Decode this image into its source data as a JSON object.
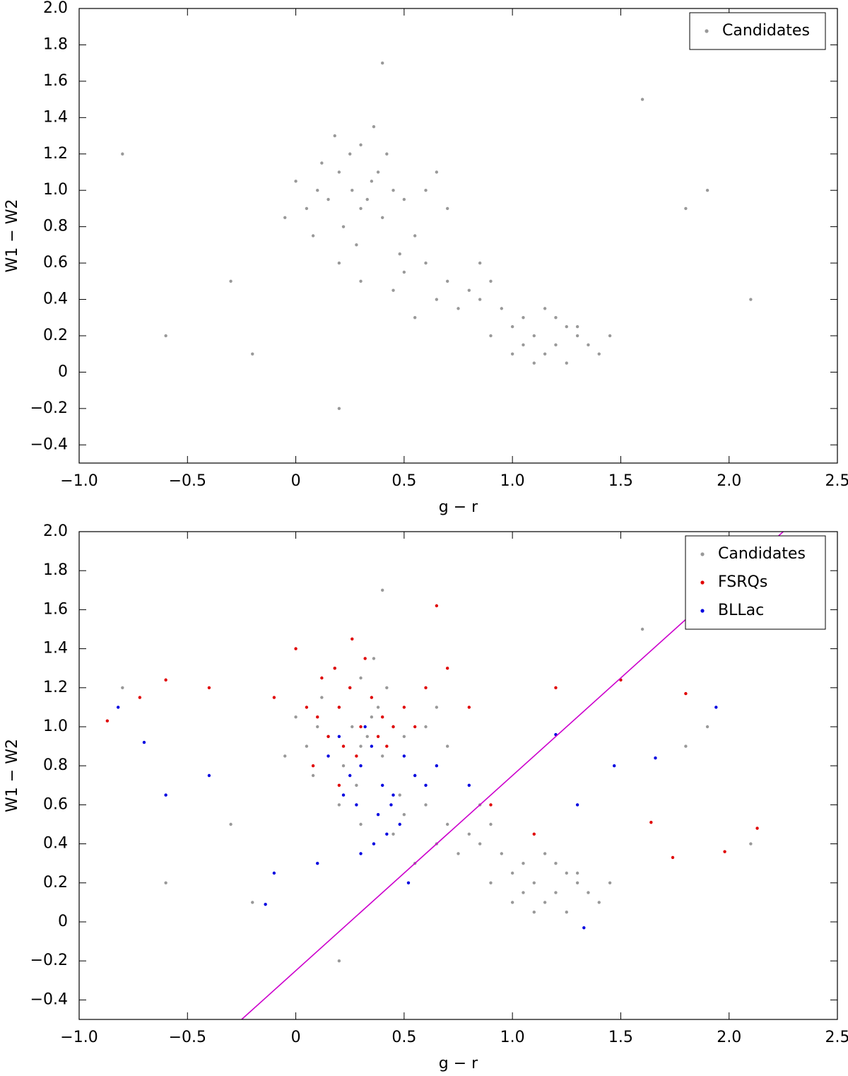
{
  "chart_data": [
    {
      "type": "scatter",
      "xlabel": "g − r",
      "ylabel": "W1 − W2",
      "xlim": [
        -1.0,
        2.5
      ],
      "ylim": [
        -0.5,
        2.0
      ],
      "xticks": [
        {
          "value": -1.0,
          "label": "−1.0"
        },
        {
          "value": -0.5,
          "label": "−0.5"
        },
        0,
        0.5,
        {
          "value": 1.0,
          "label": "1.0"
        },
        1.5,
        {
          "value": 2.0,
          "label": "2.0"
        },
        2.5
      ],
      "yticks": [
        {
          "value": -0.4,
          "label": "−0.4"
        },
        {
          "value": -0.2,
          "label": "−0.2"
        },
        0,
        0.2,
        0.4,
        0.6,
        0.8,
        {
          "value": 1.0,
          "label": "1.0"
        },
        1.2,
        1.4,
        1.6,
        1.8,
        {
          "value": 2.0,
          "label": "2.0"
        }
      ],
      "legend": "upper right",
      "series": [
        {
          "name": "Candidates",
          "color": "#000000",
          "alpha": 0.4,
          "x": [
            0.1,
            0.2,
            0.3,
            0.25,
            0.15,
            0.35,
            0.4,
            0.05,
            0.45,
            0.22,
            0.3,
            0.5,
            0.12,
            0.28,
            0.38,
            0.18,
            0.6,
            0.0,
            0.55,
            0.33,
            -0.05,
            0.42,
            0.26,
            0.48,
            0.7,
            0.2,
            0.36,
            0.08,
            0.65,
            0.3,
            1.0,
            1.1,
            1.2,
            1.3,
            1.15,
            1.05,
            0.95,
            1.25,
            1.35,
            1.4,
            1.1,
            0.9,
            1.2,
            1.0,
            1.3,
            0.85,
            1.45,
            1.15,
            1.05,
            1.25,
            0.6,
            0.7,
            0.8,
            0.5,
            0.75,
            0.65,
            0.55,
            0.9,
            0.45,
            0.85,
            -0.3,
            -0.6,
            1.8,
            2.1,
            -0.8,
            0.4,
            1.6,
            0.2,
            1.9,
            -0.2
          ],
          "y": [
            1.0,
            1.1,
            0.9,
            1.2,
            0.95,
            1.05,
            0.85,
            0.9,
            1.0,
            0.8,
            1.25,
            0.95,
            1.15,
            0.7,
            1.1,
            1.3,
            1.0,
            1.05,
            0.75,
            0.95,
            0.85,
            1.2,
            1.0,
            0.65,
            0.9,
            0.6,
            1.35,
            0.75,
            1.1,
            0.5,
            0.25,
            0.2,
            0.15,
            0.2,
            0.1,
            0.3,
            0.35,
            0.25,
            0.15,
            0.1,
            0.05,
            0.2,
            0.3,
            0.1,
            0.25,
            0.4,
            0.2,
            0.35,
            0.15,
            0.05,
            0.6,
            0.5,
            0.45,
            0.55,
            0.35,
            0.4,
            0.3,
            0.5,
            0.45,
            0.6,
            0.5,
            0.2,
            0.9,
            0.4,
            1.2,
            1.7,
            1.5,
            -0.2,
            1.0,
            0.1
          ]
        }
      ]
    },
    {
      "type": "scatter",
      "xlabel": "g − r",
      "ylabel": "W1 − W2",
      "xlim": [
        -1.0,
        2.5
      ],
      "ylim": [
        -0.5,
        2.0
      ],
      "xticks": [
        {
          "value": -1.0,
          "label": "−1.0"
        },
        {
          "value": -0.5,
          "label": "−0.5"
        },
        0,
        0.5,
        {
          "value": 1.0,
          "label": "1.0"
        },
        1.5,
        {
          "value": 2.0,
          "label": "2.0"
        },
        2.5
      ],
      "yticks": [
        {
          "value": -0.4,
          "label": "−0.4"
        },
        {
          "value": -0.2,
          "label": "−0.2"
        },
        0,
        0.2,
        0.4,
        0.6,
        0.8,
        {
          "value": 1.0,
          "label": "1.0"
        },
        1.2,
        1.4,
        1.6,
        1.8,
        {
          "value": 2.0,
          "label": "2.0"
        }
      ],
      "legend": "upper right",
      "series": [
        {
          "name": "Candidates",
          "color": "#000000",
          "alpha": 0.4,
          "x": [
            0.1,
            0.2,
            0.3,
            0.25,
            0.15,
            0.35,
            0.4,
            0.05,
            0.45,
            0.22,
            0.3,
            0.5,
            0.12,
            0.28,
            0.38,
            0.18,
            0.6,
            0.0,
            0.55,
            0.33,
            -0.05,
            0.42,
            0.26,
            0.48,
            0.7,
            0.2,
            0.36,
            0.08,
            0.65,
            0.3,
            1.0,
            1.1,
            1.2,
            1.3,
            1.15,
            1.05,
            0.95,
            1.25,
            1.35,
            1.4,
            1.1,
            0.9,
            1.2,
            1.0,
            1.3,
            0.85,
            1.45,
            1.15,
            1.05,
            1.25,
            0.6,
            0.7,
            0.8,
            0.5,
            0.75,
            0.65,
            0.55,
            0.9,
            0.45,
            0.85,
            -0.3,
            -0.6,
            1.8,
            2.1,
            -0.8,
            0.4,
            1.6,
            0.2,
            1.9,
            -0.2
          ],
          "y": [
            1.0,
            1.1,
            0.9,
            1.2,
            0.95,
            1.05,
            0.85,
            0.9,
            1.0,
            0.8,
            1.25,
            0.95,
            1.15,
            0.7,
            1.1,
            1.3,
            1.0,
            1.05,
            0.75,
            0.95,
            0.85,
            1.2,
            1.0,
            0.65,
            0.9,
            0.6,
            1.35,
            0.75,
            1.1,
            0.5,
            0.25,
            0.2,
            0.15,
            0.2,
            0.1,
            0.3,
            0.35,
            0.25,
            0.15,
            0.1,
            0.05,
            0.2,
            0.3,
            0.1,
            0.25,
            0.4,
            0.2,
            0.35,
            0.15,
            0.05,
            0.6,
            0.5,
            0.45,
            0.55,
            0.35,
            0.4,
            0.3,
            0.5,
            0.45,
            0.6,
            0.5,
            0.2,
            0.9,
            0.4,
            1.2,
            1.7,
            1.5,
            -0.2,
            1.0,
            0.1
          ]
        },
        {
          "name": "FSRQs",
          "color": "#e00000",
          "alpha": 1,
          "x": [
            0.1,
            0.2,
            0.3,
            0.15,
            0.25,
            0.35,
            0.05,
            0.4,
            0.22,
            0.18,
            0.28,
            0.12,
            0.32,
            0.45,
            0.0,
            0.38,
            0.5,
            0.08,
            0.26,
            0.6,
            -0.1,
            0.55,
            0.7,
            0.42,
            0.2,
            -0.6,
            -0.72,
            -0.87,
            -0.4,
            0.8,
            0.9,
            1.2,
            1.5,
            1.8,
            1.98,
            2.13,
            1.74,
            1.64,
            1.1,
            0.65
          ],
          "y": [
            1.05,
            1.1,
            1.0,
            0.95,
            1.2,
            1.15,
            1.1,
            1.05,
            0.9,
            1.3,
            0.85,
            1.25,
            1.35,
            1.0,
            1.4,
            0.95,
            1.1,
            0.8,
            1.45,
            1.2,
            1.15,
            1.0,
            1.3,
            0.9,
            0.7,
            1.24,
            1.15,
            1.03,
            1.2,
            1.1,
            0.6,
            1.2,
            1.24,
            1.17,
            0.36,
            0.48,
            0.33,
            0.51,
            0.45,
            1.62
          ]
        },
        {
          "name": "BLLac",
          "color": "#0000e0",
          "alpha": 1,
          "x": [
            0.3,
            0.4,
            0.35,
            0.25,
            0.45,
            0.5,
            0.2,
            0.38,
            0.28,
            0.55,
            0.32,
            0.42,
            0.6,
            0.15,
            0.48,
            0.36,
            0.22,
            0.65,
            0.3,
            0.44,
            -0.82,
            -0.7,
            -0.6,
            -0.4,
            -0.14,
            0.8,
            1.2,
            1.3,
            1.47,
            1.94,
            1.66,
            1.33,
            -0.1,
            0.1,
            0.52
          ],
          "y": [
            0.8,
            0.7,
            0.9,
            0.75,
            0.65,
            0.85,
            0.95,
            0.55,
            0.6,
            0.75,
            1.0,
            0.45,
            0.7,
            0.85,
            0.5,
            0.4,
            0.65,
            0.8,
            0.35,
            0.6,
            1.1,
            0.92,
            0.65,
            0.75,
            0.09,
            0.7,
            0.96,
            0.6,
            0.8,
            1.1,
            0.84,
            -0.03,
            0.25,
            0.3,
            0.2
          ]
        }
      ],
      "lines": [
        {
          "color": "#cc00cc",
          "x": [
            -0.25,
            2.25
          ],
          "y": [
            -0.5,
            2.0
          ]
        }
      ]
    }
  ]
}
